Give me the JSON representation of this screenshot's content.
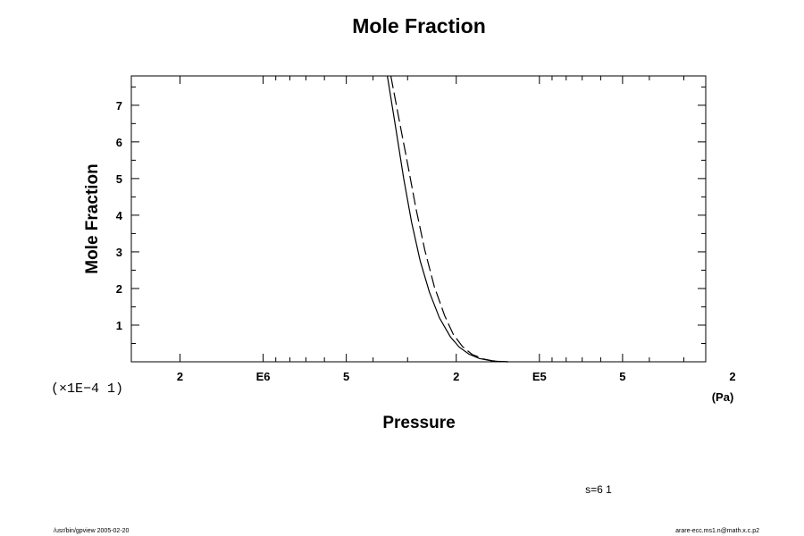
{
  "chart_data": {
    "type": "line",
    "title": "Mole Fraction",
    "xlabel": "Pressure",
    "ylabel": "Mole Fraction",
    "x_unit": "(Pa)",
    "y_multiplier": "(×1E−4 1)",
    "x_scale": "log",
    "x_reversed": true,
    "xlim": [
      3000000,
      25000
    ],
    "ylim": [
      0,
      7.8
    ],
    "x_ticks": [
      {
        "value": 2000000,
        "label": "2"
      },
      {
        "value": 1000000,
        "label": "E6"
      },
      {
        "value": 500000,
        "label": "5"
      },
      {
        "value": 200000,
        "label": "2"
      },
      {
        "value": 100000,
        "label": "E5"
      },
      {
        "value": 50000,
        "label": "5"
      },
      {
        "value": 20000,
        "label": "2"
      }
    ],
    "y_ticks": [
      {
        "value": 1,
        "label": "1"
      },
      {
        "value": 2,
        "label": "2"
      },
      {
        "value": 3,
        "label": "3"
      },
      {
        "value": 4,
        "label": "4"
      },
      {
        "value": 5,
        "label": "5"
      },
      {
        "value": 6,
        "label": "6"
      },
      {
        "value": 7,
        "label": "7"
      }
    ],
    "grid": false,
    "series": [
      {
        "style": "solid",
        "x": [
          355000,
          330000,
          310000,
          290000,
          270000,
          250000,
          230000,
          210000,
          195000,
          180000,
          165000,
          150000,
          140000,
          130000
        ],
        "y": [
          7.8,
          6.3,
          5.0,
          3.8,
          2.75,
          1.9,
          1.2,
          0.68,
          0.4,
          0.21,
          0.09,
          0.03,
          0.01,
          0.0
        ]
      },
      {
        "style": "dashed",
        "x": [
          345000,
          320000,
          300000,
          280000,
          260000,
          240000,
          220000,
          205000,
          190000,
          175000,
          160000,
          148000,
          138000,
          130000
        ],
        "y": [
          7.8,
          6.5,
          5.4,
          4.2,
          3.05,
          2.05,
          1.25,
          0.75,
          0.42,
          0.2,
          0.08,
          0.03,
          0.01,
          0.0
        ]
      }
    ]
  },
  "annotations": {
    "stamp": "s=6 1",
    "footer_left": "/usr/bin/gpview 2005-02-20",
    "footer_right": "arare-ecc.ms1.n@math.x.c.p2"
  }
}
